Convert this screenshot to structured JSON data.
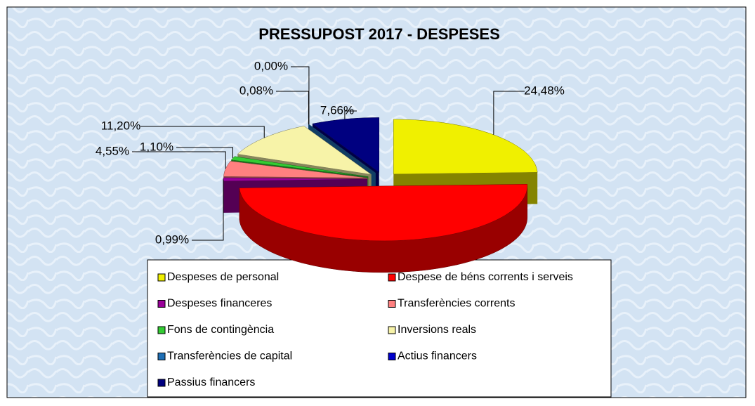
{
  "chart_data": {
    "type": "pie",
    "title": "PRESSUPOST 2017 - DESPESES",
    "categories": [
      "Despeses de personal",
      "Despese de béns corrents i serveis",
      "Despeses financeres",
      "Transferències corrents",
      "Fons de contingència",
      "Inversions reals",
      "Transferències de capital",
      "Actius financers",
      "Passius financers"
    ],
    "values": [
      24.48,
      49.94,
      0.99,
      4.55,
      1.1,
      11.2,
      0.08,
      0.0,
      7.66
    ],
    "value_labels": [
      "24,48%",
      null,
      "0,99%",
      "4,55%",
      "1,10%",
      "11,20%",
      "0,08%",
      "0,00%",
      "7,66%"
    ],
    "colors": [
      "#f0f000",
      "#ff0000",
      "#990099",
      "#ff8080",
      "#33cc33",
      "#f7f3a8",
      "#1f6fb5",
      "#0000cc",
      "#000080"
    ],
    "legend": "bottom"
  }
}
